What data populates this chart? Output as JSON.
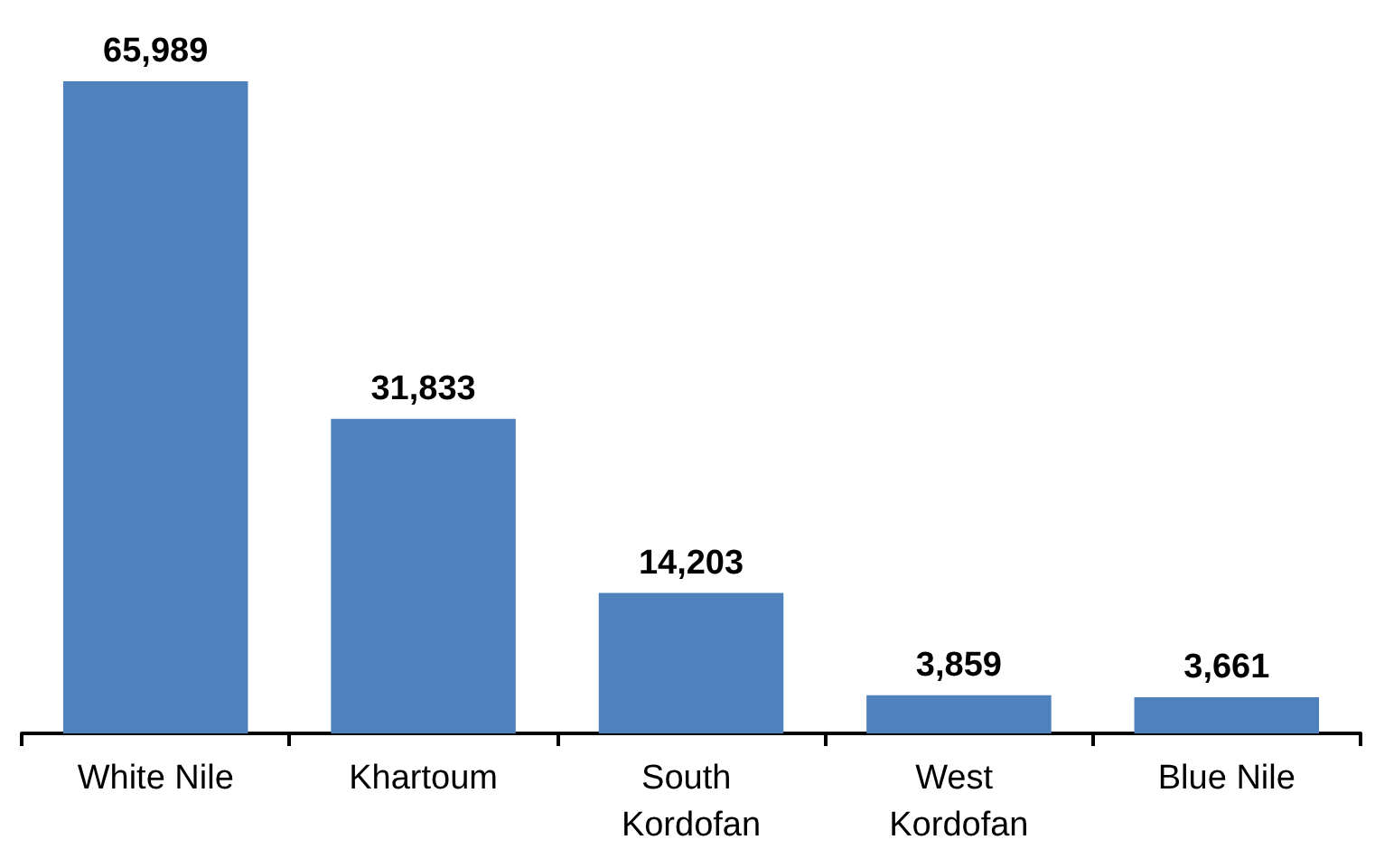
{
  "chart_data": {
    "type": "bar",
    "categories": [
      "White Nile",
      "Khartoum",
      "South Kordofan",
      "West Kordofan",
      "Blue Nile"
    ],
    "values": [
      65989,
      31833,
      14203,
      3859,
      3661
    ],
    "color": "#4f81bd",
    "value_labels": [
      "65,989",
      "31,833",
      "14,203",
      "3,859",
      "3,661"
    ]
  }
}
